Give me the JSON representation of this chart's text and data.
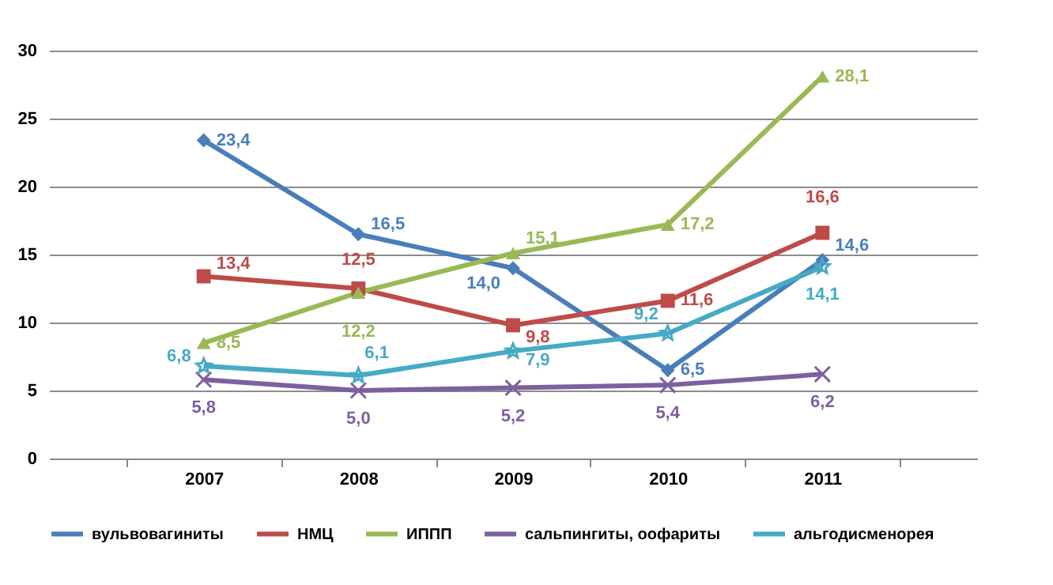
{
  "chart_data": {
    "type": "line",
    "categories": [
      "2007",
      "2008",
      "2009",
      "2010",
      "2011"
    ],
    "ylim": [
      0,
      30
    ],
    "yticks": [
      0,
      5,
      10,
      15,
      20,
      25,
      30
    ],
    "grid": "y",
    "legend": "bottom",
    "series": [
      {
        "name": "вульвовагиниты",
        "color": "#4a7ebb",
        "marker": "diamond",
        "values": [
          23.4,
          16.5,
          14.0,
          6.5,
          14.6
        ],
        "value_labels": [
          "23,4",
          "16,5",
          "14,0",
          "6,5",
          "14,6"
        ]
      },
      {
        "name": "НМЦ",
        "color": "#be4b48",
        "marker": "square",
        "values": [
          13.4,
          12.5,
          9.8,
          11.6,
          16.6
        ],
        "value_labels": [
          "13,4",
          "12,5",
          "9,8",
          "11,6",
          "16,6"
        ]
      },
      {
        "name": "ИППП",
        "color": "#98b954",
        "marker": "triangle",
        "values": [
          8.5,
          12.2,
          15.1,
          17.2,
          28.1
        ],
        "value_labels": [
          "8,5",
          "12,2",
          "15,1",
          "17,2",
          "28,1"
        ]
      },
      {
        "name": "сальпингиты, оофариты",
        "color": "#7d60a0",
        "marker": "cross",
        "values": [
          5.8,
          5.0,
          5.2,
          5.4,
          6.2
        ],
        "value_labels": [
          "5,8",
          "5,0",
          "5,2",
          "5,4",
          "6,2"
        ]
      },
      {
        "name": "альгодисменорея",
        "color": "#46aac5",
        "marker": "star",
        "values": [
          6.8,
          6.1,
          7.9,
          9.2,
          14.1
        ],
        "value_labels": [
          "6,8",
          "6,1",
          "7,9",
          "9,2",
          "14,1"
        ]
      }
    ]
  }
}
